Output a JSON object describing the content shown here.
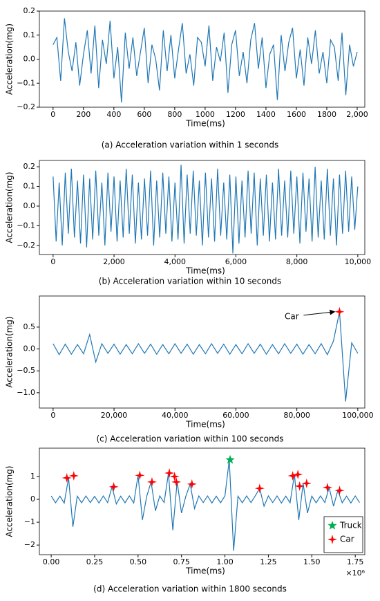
{
  "chart_data": [
    {
      "type": "line",
      "caption": "(a) Acceleration variation within 1 seconds",
      "xlabel": "Time(ms)",
      "ylabel": "Acceleration(mg)",
      "color": "#1f77b4",
      "x": [
        0,
        25,
        50,
        75,
        100,
        125,
        150,
        175,
        200,
        225,
        250,
        275,
        300,
        325,
        350,
        375,
        400,
        425,
        450,
        475,
        500,
        525,
        550,
        575,
        600,
        625,
        650,
        675,
        700,
        725,
        750,
        775,
        800,
        825,
        850,
        875,
        900,
        925,
        950,
        975,
        1000,
        1025,
        1050,
        1075,
        1100,
        1125,
        1150,
        1175,
        1200,
        1225,
        1250,
        1275,
        1300,
        1325,
        1350,
        1375,
        1400,
        1425,
        1450,
        1475,
        1500,
        1525,
        1550,
        1575,
        1600,
        1625,
        1650,
        1675,
        1700,
        1725,
        1750,
        1775,
        1800,
        1825,
        1850,
        1875,
        1900,
        1925,
        1950,
        1975,
        2000
      ],
      "values": [
        0.06,
        0.09,
        -0.09,
        0.17,
        0.03,
        -0.05,
        0.07,
        -0.11,
        0.02,
        0.12,
        -0.06,
        0.14,
        -0.12,
        0.08,
        -0.02,
        0.16,
        -0.08,
        0.05,
        -0.18,
        0.11,
        -0.04,
        0.09,
        -0.07,
        0.03,
        0.13,
        -0.1,
        0.06,
        0.0,
        -0.13,
        0.12,
        -0.05,
        0.1,
        -0.08,
        0.04,
        0.15,
        -0.06,
        0.02,
        -0.11,
        0.09,
        0.07,
        -0.03,
        0.14,
        -0.09,
        0.05,
        -0.01,
        0.11,
        -0.14,
        0.06,
        0.12,
        -0.07,
        0.03,
        -0.1,
        0.08,
        0.15,
        -0.04,
        0.09,
        -0.12,
        0.02,
        0.06,
        -0.17,
        0.1,
        -0.05,
        0.07,
        0.13,
        -0.08,
        0.04,
        -0.11,
        0.09,
        -0.02,
        0.12,
        -0.06,
        0.03,
        -0.1,
        0.08,
        0.05,
        -0.09,
        0.11,
        -0.15,
        0.06,
        -0.03,
        0.03
      ],
      "xlim": [
        -90,
        2050
      ],
      "ylim": [
        -0.2,
        0.2
      ],
      "xticks": [
        0,
        200,
        400,
        600,
        800,
        1000,
        1200,
        1400,
        1600,
        1800,
        {
          "value": 2000,
          "label": "2,000"
        }
      ],
      "yticks": [
        {
          "value": -0.2,
          "label": "−0.2"
        },
        {
          "value": -0.1,
          "label": "−0.1"
        },
        {
          "value": 0,
          "label": "0.0"
        },
        0.1,
        0.2
      ]
    },
    {
      "type": "line",
      "caption": "(b) Acceleration variation within 10 seconds",
      "xlabel": "Time(ms)",
      "ylabel": "Acceleration(mg)",
      "color": "#1f77b4",
      "x": [
        0,
        100,
        200,
        300,
        400,
        500,
        600,
        700,
        800,
        900,
        1000,
        1100,
        1200,
        1300,
        1400,
        1500,
        1600,
        1700,
        1800,
        1900,
        2000,
        2100,
        2200,
        2300,
        2400,
        2500,
        2600,
        2700,
        2800,
        2900,
        3000,
        3100,
        3200,
        3300,
        3400,
        3500,
        3600,
        3700,
        3800,
        3900,
        4000,
        4100,
        4200,
        4300,
        4400,
        4500,
        4600,
        4700,
        4800,
        4900,
        5000,
        5100,
        5200,
        5300,
        5400,
        5500,
        5600,
        5700,
        5800,
        5900,
        6000,
        6100,
        6200,
        6300,
        6400,
        6500,
        6600,
        6700,
        6800,
        6900,
        7000,
        7100,
        7200,
        7300,
        7400,
        7500,
        7600,
        7700,
        7800,
        7900,
        8000,
        8100,
        8200,
        8300,
        8400,
        8500,
        8600,
        8700,
        8800,
        8900,
        9000,
        9100,
        9200,
        9300,
        9400,
        9500,
        9600,
        9700,
        9800,
        9900,
        10000
      ],
      "values": [
        0.15,
        -0.18,
        0.12,
        -0.2,
        0.17,
        -0.14,
        0.19,
        -0.16,
        0.13,
        -0.19,
        0.16,
        -0.21,
        0.14,
        -0.17,
        0.18,
        -0.15,
        0.12,
        -0.2,
        0.17,
        -0.13,
        0.15,
        -0.18,
        0.13,
        -0.16,
        0.19,
        -0.14,
        0.16,
        -0.19,
        0.12,
        -0.17,
        0.14,
        -0.15,
        0.18,
        -0.2,
        0.13,
        -0.16,
        0.17,
        -0.14,
        0.15,
        -0.18,
        0.12,
        -0.17,
        0.21,
        -0.19,
        0.16,
        -0.14,
        0.18,
        -0.15,
        0.13,
        -0.2,
        0.17,
        -0.16,
        0.14,
        -0.18,
        0.19,
        -0.15,
        0.12,
        -0.17,
        0.16,
        -0.24,
        0.15,
        -0.19,
        0.13,
        -0.16,
        0.18,
        -0.14,
        0.17,
        -0.2,
        0.14,
        -0.15,
        0.16,
        -0.18,
        0.12,
        -0.17,
        0.19,
        -0.15,
        0.13,
        -0.16,
        0.18,
        -0.14,
        0.15,
        -0.19,
        0.17,
        -0.13,
        0.14,
        -0.18,
        0.2,
        -0.16,
        0.13,
        -0.17,
        0.19,
        -0.15,
        0.14,
        -0.2,
        0.16,
        -0.14,
        0.18,
        -0.13,
        0.15,
        -0.12,
        0.1
      ],
      "xlim": [
        -450,
        10230
      ],
      "ylim": [
        -0.246,
        0.232
      ],
      "xticks": [
        0,
        {
          "value": 2000,
          "label": "2,000"
        },
        {
          "value": 4000,
          "label": "4,000"
        },
        {
          "value": 6000,
          "label": "6,000"
        },
        {
          "value": 8000,
          "label": "8,000"
        },
        {
          "value": 10000,
          "label": "10,000"
        }
      ],
      "yticks": [
        {
          "value": -0.2,
          "label": "−0.2"
        },
        {
          "value": -0.1,
          "label": "−0.1"
        },
        {
          "value": 0,
          "label": "0.0"
        },
        0.1,
        0.2
      ]
    },
    {
      "type": "line",
      "caption": "(c) Acceleration variation within 100 seconds",
      "xlabel": "Time(ms)",
      "ylabel": "Acceleration(mg)",
      "color": "#1f77b4",
      "x": [
        0,
        2000,
        4000,
        6000,
        8000,
        10000,
        12000,
        14000,
        16000,
        18000,
        20000,
        22000,
        24000,
        26000,
        28000,
        30000,
        32000,
        34000,
        36000,
        38000,
        40000,
        42000,
        44000,
        46000,
        48000,
        50000,
        52000,
        54000,
        56000,
        58000,
        60000,
        62000,
        64000,
        66000,
        68000,
        70000,
        72000,
        74000,
        76000,
        78000,
        80000,
        82000,
        84000,
        86000,
        88000,
        90000,
        92000,
        94000,
        96000,
        98000,
        100000
      ],
      "values": [
        0.12,
        -0.13,
        0.11,
        -0.12,
        0.1,
        -0.11,
        0.33,
        -0.3,
        0.12,
        -0.1,
        0.11,
        -0.12,
        0.1,
        -0.11,
        0.12,
        -0.1,
        0.11,
        -0.12,
        0.1,
        -0.11,
        0.12,
        -0.1,
        0.11,
        -0.12,
        0.1,
        -0.11,
        0.12,
        -0.1,
        0.11,
        -0.12,
        0.1,
        -0.11,
        0.12,
        -0.1,
        0.11,
        -0.12,
        0.1,
        -0.11,
        0.12,
        -0.1,
        0.11,
        -0.12,
        0.1,
        -0.11,
        0.12,
        -0.13,
        0.18,
        0.85,
        -1.2,
        0.14,
        -0.1
      ],
      "markers": [
        {
          "name": "Car",
          "shape": "star4",
          "color": "#ff0000",
          "x": [
            94000
          ],
          "values": [
            0.85
          ]
        }
      ],
      "annotation": "Car",
      "xlim": [
        -4500,
        102300
      ],
      "ylim": [
        -1.35,
        1.21
      ],
      "xticks": [
        0,
        {
          "value": 20000,
          "label": "20,000"
        },
        {
          "value": 40000,
          "label": "40,000"
        },
        {
          "value": 60000,
          "label": "60,000"
        },
        {
          "value": 80000,
          "label": "80,000"
        },
        {
          "value": 100000,
          "label": "100,000"
        }
      ],
      "yticks": [
        {
          "value": -1,
          "label": "−1.0"
        },
        {
          "value": -0.5,
          "label": "−0.5"
        },
        {
          "value": 0,
          "label": "0.0"
        },
        0.5
      ]
    },
    {
      "type": "line",
      "caption": "(d) Acceleration variation within 1800 seconds",
      "xlabel": "Time(ms)",
      "ylabel": "Acceleration(mg)",
      "x_offset_label": "×10⁶",
      "color": "#1f77b4",
      "x": [
        0,
        0.025,
        0.05,
        0.075,
        0.1,
        0.125,
        0.15,
        0.175,
        0.2,
        0.225,
        0.25,
        0.275,
        0.3,
        0.325,
        0.35,
        0.375,
        0.4,
        0.425,
        0.45,
        0.475,
        0.5,
        0.525,
        0.55,
        0.575,
        0.6,
        0.625,
        0.65,
        0.675,
        0.7,
        0.725,
        0.75,
        0.775,
        0.8,
        0.825,
        0.85,
        0.875,
        0.9,
        0.925,
        0.95,
        0.975,
        1.0,
        1.025,
        1.05,
        1.075,
        1.1,
        1.125,
        1.15,
        1.175,
        1.2,
        1.225,
        1.25,
        1.275,
        1.3,
        1.325,
        1.35,
        1.375,
        1.4,
        1.425,
        1.45,
        1.475,
        1.5,
        1.525,
        1.55,
        1.575,
        1.6,
        1.625,
        1.65,
        1.675,
        1.7,
        1.725,
        1.75,
        1.775
      ],
      "values": [
        0.15,
        -0.15,
        0.14,
        -0.16,
        0.94,
        -1.2,
        0.14,
        -0.15,
        0.15,
        -0.14,
        0.13,
        -0.16,
        0.15,
        -0.14,
        0.55,
        -0.2,
        0.14,
        -0.15,
        0.15,
        -0.16,
        1.05,
        -0.9,
        0.14,
        0.76,
        -0.5,
        0.15,
        -0.14,
        1.15,
        -1.35,
        0.78,
        -0.6,
        0.14,
        0.67,
        -0.4,
        0.15,
        -0.14,
        0.15,
        -0.16,
        0.14,
        -0.15,
        0.15,
        1.73,
        -2.25,
        0.14,
        -0.15,
        0.15,
        -0.14,
        0.16,
        0.48,
        -0.3,
        0.15,
        -0.14,
        0.15,
        -0.16,
        0.14,
        -0.15,
        1.09,
        -0.9,
        0.7,
        -0.6,
        0.14,
        -0.15,
        0.15,
        -0.14,
        0.52,
        -0.3,
        0.39,
        -0.15,
        0.14,
        -0.16,
        0.15,
        -0.14
      ],
      "markers": [
        {
          "name": "Truck",
          "shape": "star5",
          "color": "#00b050",
          "x": [
            1.03
          ],
          "values": [
            1.73
          ]
        },
        {
          "name": "Car",
          "shape": "star4",
          "color": "#ff0000",
          "x": [
            0.09,
            0.13,
            0.36,
            0.51,
            0.58,
            0.68,
            0.71,
            0.72,
            0.81,
            1.2,
            1.39,
            1.42,
            1.43,
            1.47,
            1.59,
            1.66
          ],
          "values": [
            0.94,
            1.03,
            0.55,
            1.05,
            0.76,
            1.15,
            1.0,
            0.76,
            0.67,
            0.48,
            1.03,
            1.09,
            0.58,
            0.7,
            0.52,
            0.39
          ]
        }
      ],
      "legend": "lower right",
      "xlim": [
        -0.068,
        1.805
      ],
      "ylim": [
        -2.42,
        2.24
      ],
      "xticks": [
        {
          "value": 0,
          "label": "0.00"
        },
        0.25,
        {
          "value": 0.5,
          "label": "0.50"
        },
        0.75,
        {
          "value": 1,
          "label": "1.00"
        },
        1.25,
        {
          "value": 1.5,
          "label": "1.50"
        },
        1.75
      ],
      "yticks": [
        {
          "value": -2,
          "label": "−2"
        },
        {
          "value": -1,
          "label": "−1"
        },
        0,
        1
      ]
    }
  ]
}
